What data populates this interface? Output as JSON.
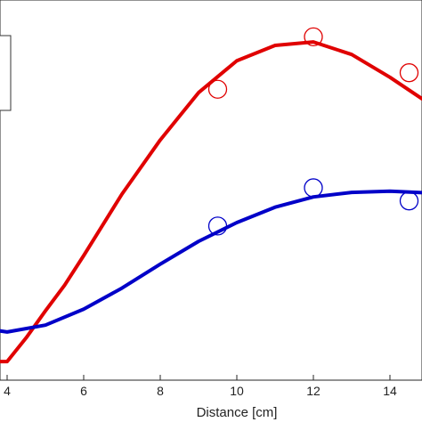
{
  "chart_data": {
    "type": "line",
    "xlabel": "Distance [cm]",
    "ylabel": "",
    "title": "",
    "xlim": [
      3.8,
      15.2
    ],
    "xticks": [
      4,
      6,
      8,
      10,
      12,
      14
    ],
    "xtick_labels": [
      "4",
      "6",
      "8",
      "10",
      "12",
      "14"
    ],
    "grid": false,
    "legend": {
      "placement": "top-left",
      "entries_visible": false
    },
    "series": [
      {
        "color": "#e00000",
        "line": {
          "x": [
            3.8,
            4.0,
            4.5,
            5.0,
            5.5,
            6.0,
            7.0,
            8.0,
            9.0,
            10.0,
            11.0,
            12.0,
            13.0,
            14.0,
            15.0
          ],
          "y": [
            6,
            6,
            48,
            95,
            140,
            192,
            300,
            395,
            478,
            534,
            561,
            567,
            545,
            505,
            460
          ]
        },
        "markers": {
          "x": [
            9.5,
            12.0,
            14.5
          ],
          "y": [
            484,
            576,
            513
          ]
        }
      },
      {
        "color": "#0000c8",
        "line": {
          "x": [
            3.8,
            4.0,
            5.0,
            6.0,
            7.0,
            8.0,
            9.0,
            10.0,
            11.0,
            12.0,
            13.0,
            14.0,
            15.0
          ],
          "y": [
            60,
            58,
            70,
            98,
            135,
            177,
            217,
            250,
            277,
            295,
            303,
            305,
            302
          ]
        },
        "markers": {
          "x": [
            9.5,
            12.0,
            14.5
          ],
          "y": [
            244,
            311,
            288
          ]
        }
      }
    ]
  }
}
